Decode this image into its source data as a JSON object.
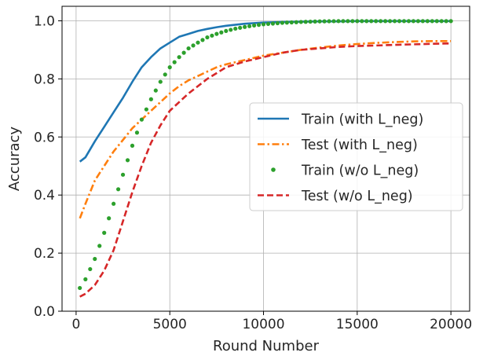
{
  "chart_data": {
    "type": "line",
    "title": "",
    "xlabel": "Round Number",
    "ylabel": "Accuracy",
    "xlim": [
      -750,
      21000
    ],
    "ylim": [
      0.0,
      1.05
    ],
    "x_ticks": [
      0,
      5000,
      10000,
      15000,
      20000
    ],
    "x_tick_labels": [
      "0",
      "5000",
      "10000",
      "15000",
      "20000"
    ],
    "y_ticks": [
      0.0,
      0.2,
      0.4,
      0.6,
      0.8,
      1.0
    ],
    "y_tick_labels": [
      "0.0",
      "0.2",
      "0.4",
      "0.6",
      "0.8",
      "1.0"
    ],
    "grid": true,
    "legend_position": "center-right",
    "series": [
      {
        "name": "Train (with L_neg)",
        "color": "#1f77b4",
        "style": "solid",
        "x": [
          200,
          500,
          1000,
          1500,
          2000,
          2500,
          3000,
          3500,
          4000,
          4500,
          5000,
          5500,
          6000,
          6500,
          7000,
          7500,
          8000,
          9000,
          10000,
          11000,
          12000,
          13000,
          14000,
          15000,
          16000,
          17000,
          18000,
          19000,
          20000
        ],
        "y": [
          0.515,
          0.53,
          0.585,
          0.635,
          0.685,
          0.735,
          0.79,
          0.84,
          0.875,
          0.905,
          0.925,
          0.945,
          0.955,
          0.965,
          0.972,
          0.978,
          0.983,
          0.99,
          0.994,
          0.996,
          0.997,
          0.998,
          0.998,
          0.999,
          0.999,
          0.999,
          0.999,
          0.999,
          0.999
        ]
      },
      {
        "name": "Test (with L_neg)",
        "color": "#ff7f0e",
        "style": "dashdot",
        "x": [
          200,
          500,
          1000,
          1500,
          2000,
          2500,
          3000,
          3500,
          4000,
          4500,
          5000,
          5500,
          6000,
          6500,
          7000,
          7500,
          8000,
          9000,
          10000,
          11000,
          12000,
          13000,
          14000,
          15000,
          16000,
          17000,
          18000,
          19000,
          20000
        ],
        "y": [
          0.32,
          0.37,
          0.45,
          0.5,
          0.55,
          0.59,
          0.63,
          0.66,
          0.69,
          0.72,
          0.75,
          0.775,
          0.795,
          0.81,
          0.825,
          0.84,
          0.85,
          0.865,
          0.88,
          0.89,
          0.9,
          0.908,
          0.915,
          0.92,
          0.924,
          0.927,
          0.929,
          0.93,
          0.93
        ]
      },
      {
        "name": "Train (w/o L_neg)",
        "color": "#2ca02c",
        "style": "dots",
        "x": [
          200,
          500,
          1000,
          1500,
          2000,
          2500,
          3000,
          3500,
          4000,
          4500,
          5000,
          5500,
          6000,
          6500,
          7000,
          7500,
          8000,
          8500,
          9000,
          9500,
          10000,
          11000,
          12000,
          13000,
          14000,
          15000,
          16000,
          17000,
          18000,
          19000,
          20000
        ],
        "y": [
          0.08,
          0.11,
          0.18,
          0.27,
          0.37,
          0.47,
          0.57,
          0.66,
          0.73,
          0.79,
          0.84,
          0.875,
          0.905,
          0.925,
          0.943,
          0.955,
          0.965,
          0.973,
          0.979,
          0.984,
          0.988,
          0.993,
          0.996,
          0.998,
          0.999,
          0.999,
          0.999,
          0.999,
          0.999,
          0.999,
          0.999
        ]
      },
      {
        "name": "Test (w/o L_neg)",
        "color": "#d62728",
        "style": "dashed",
        "x": [
          200,
          500,
          1000,
          1500,
          2000,
          2500,
          3000,
          3500,
          4000,
          4500,
          5000,
          5500,
          6000,
          6500,
          7000,
          7500,
          8000,
          9000,
          10000,
          11000,
          12000,
          13000,
          14000,
          15000,
          16000,
          17000,
          18000,
          19000,
          20000
        ],
        "y": [
          0.05,
          0.06,
          0.09,
          0.14,
          0.21,
          0.31,
          0.41,
          0.5,
          0.58,
          0.64,
          0.69,
          0.72,
          0.75,
          0.775,
          0.8,
          0.82,
          0.84,
          0.86,
          0.875,
          0.89,
          0.9,
          0.905,
          0.91,
          0.913,
          0.915,
          0.917,
          0.919,
          0.921,
          0.922
        ]
      }
    ]
  }
}
